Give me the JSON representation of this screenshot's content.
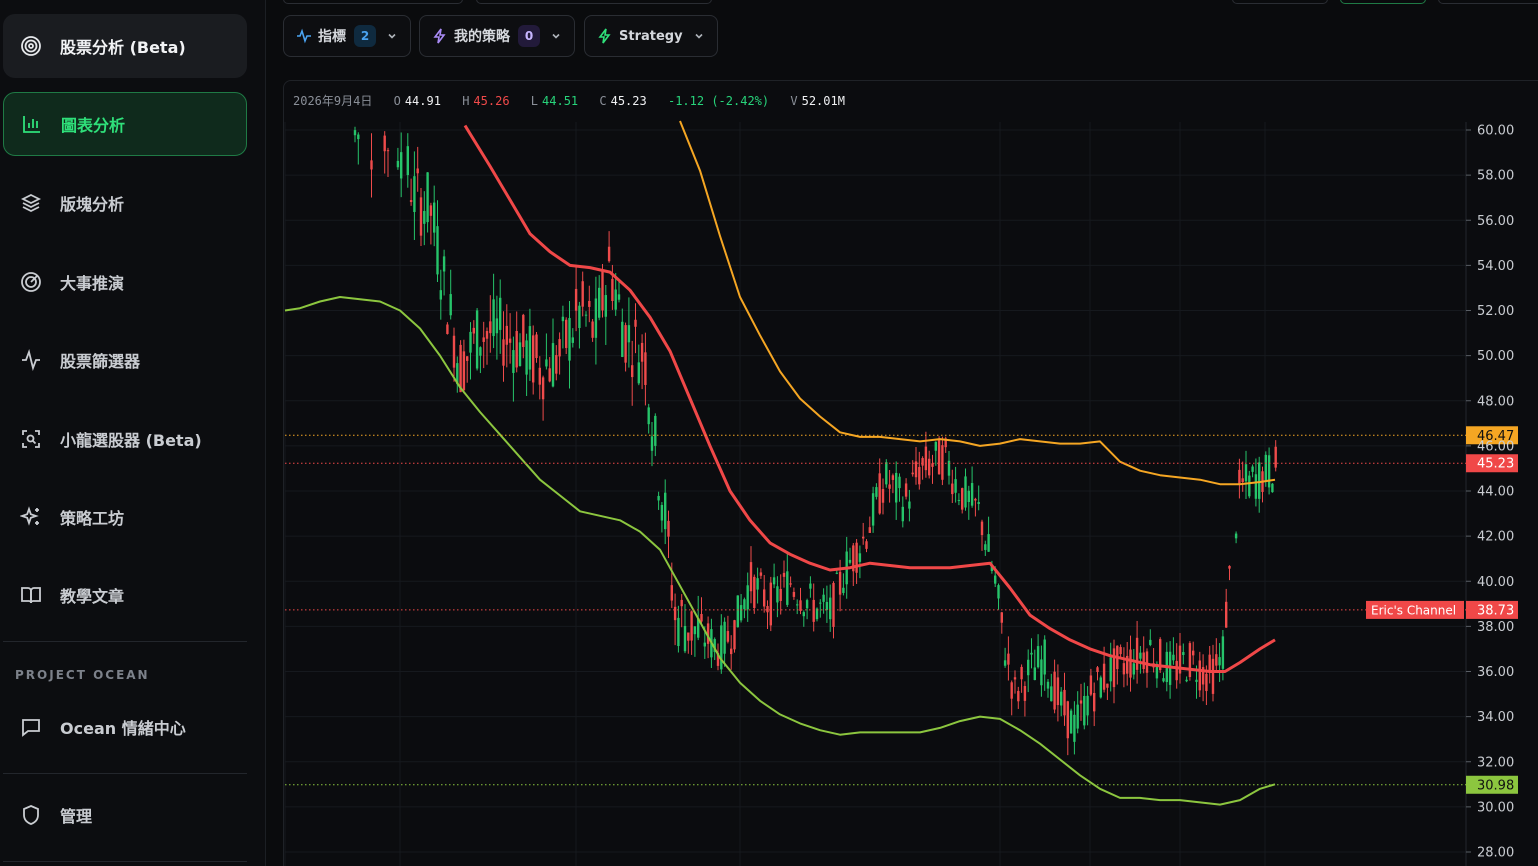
{
  "sidebar": {
    "items": [
      {
        "label": "股票分析 (Beta)",
        "icon": "target-icon"
      },
      {
        "label": "圖表分析",
        "icon": "bar-chart-icon"
      },
      {
        "label": "版塊分析",
        "icon": "layers-icon"
      },
      {
        "label": "大事推演",
        "icon": "radar-icon"
      },
      {
        "label": "股票篩選器",
        "icon": "activity-icon"
      },
      {
        "label": "小龍選股器 (Beta)",
        "icon": "scan-icon"
      },
      {
        "label": "策略工坊",
        "icon": "sparkles-icon"
      },
      {
        "label": "教學文章",
        "icon": "book-icon"
      }
    ],
    "section_label": "PROJECT OCEAN",
    "ocean_item": {
      "label": "Ocean 情緒中心",
      "icon": "message-icon"
    },
    "admin_item": {
      "label": "管理",
      "icon": "shield-icon"
    }
  },
  "toolbar": {
    "indicators": {
      "label": "指標",
      "count": "2"
    },
    "my_strategies": {
      "label": "我的策略",
      "count": "0"
    },
    "strategy": {
      "label": "Strategy"
    }
  },
  "ohlc": {
    "date": "2026年9月4日",
    "o_label": "O",
    "o": "44.91",
    "h_label": "H",
    "h": "45.26",
    "l_label": "L",
    "l": "44.51",
    "c_label": "C",
    "c": "45.23",
    "change": "-1.12 (-2.42%)",
    "v_label": "V",
    "v": "52.01M"
  },
  "colors": {
    "up": "#26c46a",
    "down": "#ef4b4b",
    "upper_band": "#f5a623",
    "middle_band": "#f04848",
    "lower_band": "#8cc63f",
    "accent": "#2fe07a"
  },
  "chart_data": {
    "type": "candlestick",
    "y_axis_ticks": [
      "60.00",
      "58.00",
      "56.00",
      "54.00",
      "52.00",
      "50.00",
      "48.00",
      "46.00",
      "44.00",
      "42.00",
      "40.00",
      "38.00",
      "36.00",
      "34.00",
      "32.00",
      "30.00",
      "28.00"
    ],
    "ylim": [
      28,
      60.3
    ],
    "price_lines": [
      {
        "value": 46.47,
        "label": "46.47",
        "color": "#f5a623"
      },
      {
        "value": 45.23,
        "label": "45.23",
        "color": "#f04848"
      },
      {
        "value": 38.73,
        "label": "38.73",
        "color": "#f04848",
        "name": "Eric's Channel"
      },
      {
        "value": 30.98,
        "label": "30.98",
        "color": "#8cc63f"
      }
    ],
    "series": [
      {
        "key": "upper",
        "values": [
          [
            680,
            60.4
          ],
          [
            700,
            58.2
          ],
          [
            720,
            55.3
          ],
          [
            740,
            52.6
          ],
          [
            760,
            50.9
          ],
          [
            780,
            49.3
          ],
          [
            800,
            48.1
          ],
          [
            820,
            47.3
          ],
          [
            840,
            46.6
          ],
          [
            860,
            46.4
          ],
          [
            880,
            46.4
          ],
          [
            900,
            46.3
          ],
          [
            920,
            46.2
          ],
          [
            940,
            46.3
          ],
          [
            960,
            46.2
          ],
          [
            980,
            46.0
          ],
          [
            1000,
            46.1
          ],
          [
            1020,
            46.3
          ],
          [
            1040,
            46.2
          ],
          [
            1060,
            46.1
          ],
          [
            1080,
            46.1
          ],
          [
            1100,
            46.2
          ],
          [
            1120,
            45.3
          ],
          [
            1140,
            44.9
          ],
          [
            1160,
            44.7
          ],
          [
            1180,
            44.6
          ],
          [
            1200,
            44.5
          ],
          [
            1220,
            44.3
          ],
          [
            1240,
            44.3
          ],
          [
            1260,
            44.4
          ],
          [
            1275,
            44.5
          ]
        ]
      },
      {
        "key": "middle",
        "values": [
          [
            465,
            60.2
          ],
          [
            490,
            58.4
          ],
          [
            510,
            56.9
          ],
          [
            530,
            55.4
          ],
          [
            550,
            54.6
          ],
          [
            570,
            54.0
          ],
          [
            590,
            53.9
          ],
          [
            610,
            53.7
          ],
          [
            630,
            52.9
          ],
          [
            650,
            51.7
          ],
          [
            670,
            50.2
          ],
          [
            690,
            48.1
          ],
          [
            710,
            46.0
          ],
          [
            730,
            44.0
          ],
          [
            750,
            42.7
          ],
          [
            770,
            41.7
          ],
          [
            790,
            41.2
          ],
          [
            810,
            40.8
          ],
          [
            830,
            40.5
          ],
          [
            850,
            40.6
          ],
          [
            870,
            40.8
          ],
          [
            890,
            40.7
          ],
          [
            910,
            40.6
          ],
          [
            930,
            40.6
          ],
          [
            950,
            40.6
          ],
          [
            970,
            40.7
          ],
          [
            990,
            40.8
          ],
          [
            1010,
            39.7
          ],
          [
            1030,
            38.5
          ],
          [
            1050,
            37.9
          ],
          [
            1070,
            37.4
          ],
          [
            1090,
            37.0
          ],
          [
            1110,
            36.7
          ],
          [
            1130,
            36.5
          ],
          [
            1150,
            36.3
          ],
          [
            1170,
            36.2
          ],
          [
            1190,
            36.1
          ],
          [
            1210,
            36.0
          ],
          [
            1225,
            36.0
          ],
          [
            1240,
            36.4
          ],
          [
            1260,
            37.0
          ],
          [
            1275,
            37.4
          ]
        ]
      },
      {
        "key": "lower",
        "values": [
          [
            285,
            52.0
          ],
          [
            300,
            52.1
          ],
          [
            320,
            52.4
          ],
          [
            340,
            52.6
          ],
          [
            360,
            52.5
          ],
          [
            380,
            52.4
          ],
          [
            400,
            52.0
          ],
          [
            420,
            51.2
          ],
          [
            440,
            50.0
          ],
          [
            460,
            48.6
          ],
          [
            480,
            47.5
          ],
          [
            500,
            46.5
          ],
          [
            520,
            45.5
          ],
          [
            540,
            44.5
          ],
          [
            560,
            43.8
          ],
          [
            580,
            43.1
          ],
          [
            600,
            42.9
          ],
          [
            620,
            42.7
          ],
          [
            640,
            42.2
          ],
          [
            660,
            41.4
          ],
          [
            680,
            39.8
          ],
          [
            700,
            38.2
          ],
          [
            720,
            36.6
          ],
          [
            740,
            35.5
          ],
          [
            760,
            34.7
          ],
          [
            780,
            34.1
          ],
          [
            800,
            33.7
          ],
          [
            820,
            33.4
          ],
          [
            840,
            33.2
          ],
          [
            860,
            33.3
          ],
          [
            880,
            33.3
          ],
          [
            900,
            33.3
          ],
          [
            920,
            33.3
          ],
          [
            940,
            33.5
          ],
          [
            960,
            33.8
          ],
          [
            980,
            34.0
          ],
          [
            1000,
            33.9
          ],
          [
            1020,
            33.4
          ],
          [
            1040,
            32.8
          ],
          [
            1060,
            32.1
          ],
          [
            1080,
            31.4
          ],
          [
            1100,
            30.8
          ],
          [
            1120,
            30.4
          ],
          [
            1140,
            30.4
          ],
          [
            1160,
            30.3
          ],
          [
            1180,
            30.3
          ],
          [
            1200,
            30.2
          ],
          [
            1220,
            30.1
          ],
          [
            1240,
            30.3
          ],
          [
            1260,
            30.8
          ],
          [
            1275,
            31.0
          ]
        ]
      }
    ]
  }
}
